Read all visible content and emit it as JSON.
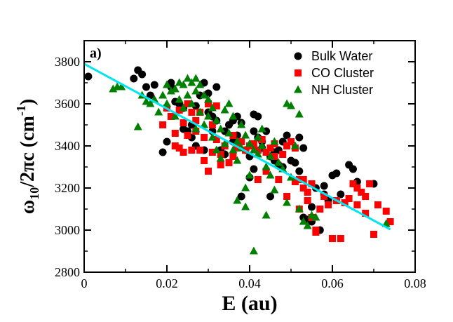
{
  "chart_data": {
    "type": "scatter",
    "panel_label": "a)",
    "xlabel": "E (au)",
    "ylabel_main": "ω",
    "ylabel_sub": "10",
    "ylabel_mid": "/2πc (cm",
    "ylabel_sup": "-1",
    "ylabel_end": ")",
    "xlim": [
      0,
      0.08
    ],
    "ylim": [
      2800,
      3900
    ],
    "xticks": [
      0,
      0.02,
      0.04,
      0.06,
      0.08
    ],
    "xtick_labels": [
      "0",
      "0.02",
      "0.04",
      "0.06",
      "0.08"
    ],
    "yticks": [
      2800,
      3000,
      3200,
      3400,
      3600,
      3800
    ],
    "ytick_labels": [
      "2800",
      "3000",
      "3200",
      "3400",
      "3600",
      "3800"
    ],
    "legend_position": "top-right",
    "fit_line": {
      "x": [
        0.0,
        0.074
      ],
      "y": [
        3790,
        3003
      ],
      "color": "#00e5ee"
    },
    "series": [
      {
        "name": "Bulk Water",
        "marker": "circle",
        "color": "#000000",
        "points": [
          [
            0.001,
            3730
          ],
          [
            0.012,
            3720
          ],
          [
            0.013,
            3760
          ],
          [
            0.014,
            3740
          ],
          [
            0.015,
            3680
          ],
          [
            0.016,
            3640
          ],
          [
            0.017,
            3690
          ],
          [
            0.019,
            3370
          ],
          [
            0.02,
            3420
          ],
          [
            0.021,
            3700
          ],
          [
            0.021,
            3680
          ],
          [
            0.022,
            3610
          ],
          [
            0.023,
            3600
          ],
          [
            0.024,
            3580
          ],
          [
            0.024,
            3480
          ],
          [
            0.025,
            3470
          ],
          [
            0.026,
            3440
          ],
          [
            0.027,
            3400
          ],
          [
            0.027,
            3590
          ],
          [
            0.028,
            3640
          ],
          [
            0.029,
            3700
          ],
          [
            0.03,
            3650
          ],
          [
            0.03,
            3560
          ],
          [
            0.031,
            3540
          ],
          [
            0.032,
            3520
          ],
          [
            0.032,
            3680
          ],
          [
            0.033,
            3380
          ],
          [
            0.034,
            3470
          ],
          [
            0.035,
            3500
          ],
          [
            0.036,
            3520
          ],
          [
            0.037,
            3450
          ],
          [
            0.037,
            3540
          ],
          [
            0.038,
            3510
          ],
          [
            0.038,
            3160
          ],
          [
            0.039,
            3380
          ],
          [
            0.04,
            3350
          ],
          [
            0.04,
            3250
          ],
          [
            0.041,
            3550
          ],
          [
            0.041,
            3470
          ],
          [
            0.042,
            3540
          ],
          [
            0.042,
            3440
          ],
          [
            0.043,
            3420
          ],
          [
            0.043,
            3390
          ],
          [
            0.044,
            3470
          ],
          [
            0.045,
            3350
          ],
          [
            0.045,
            3160
          ],
          [
            0.046,
            3370
          ],
          [
            0.046,
            3330
          ],
          [
            0.047,
            3380
          ],
          [
            0.048,
            3420
          ],
          [
            0.048,
            3300
          ],
          [
            0.049,
            3450
          ],
          [
            0.05,
            3330
          ],
          [
            0.051,
            3320
          ],
          [
            0.052,
            3440
          ],
          [
            0.052,
            3280
          ],
          [
            0.053,
            3390
          ],
          [
            0.053,
            3060
          ],
          [
            0.054,
            3050
          ],
          [
            0.055,
            3110
          ],
          [
            0.055,
            3040
          ],
          [
            0.056,
            3200
          ],
          [
            0.057,
            3000
          ],
          [
            0.058,
            3170
          ],
          [
            0.058,
            3210
          ],
          [
            0.059,
            3140
          ],
          [
            0.06,
            3260
          ],
          [
            0.061,
            3270
          ],
          [
            0.062,
            3170
          ],
          [
            0.064,
            3310
          ],
          [
            0.065,
            3290
          ],
          [
            0.066,
            3230
          ],
          [
            0.07,
            3220
          ],
          [
            0.031,
            3470
          ],
          [
            0.036,
            3420
          ],
          [
            0.034,
            3360
          ],
          [
            0.041,
            3290
          ],
          [
            0.047,
            3310
          ],
          [
            0.029,
            3380
          ],
          [
            0.026,
            3500
          ]
        ]
      },
      {
        "name": "CO Cluster",
        "marker": "square",
        "color": "#ff0000",
        "points": [
          [
            0.019,
            3500
          ],
          [
            0.02,
            3580
          ],
          [
            0.021,
            3540
          ],
          [
            0.022,
            3400
          ],
          [
            0.022,
            3460
          ],
          [
            0.023,
            3390
          ],
          [
            0.023,
            3570
          ],
          [
            0.024,
            3510
          ],
          [
            0.024,
            3370
          ],
          [
            0.025,
            3600
          ],
          [
            0.025,
            3450
          ],
          [
            0.026,
            3560
          ],
          [
            0.026,
            3380
          ],
          [
            0.027,
            3470
          ],
          [
            0.027,
            3520
          ],
          [
            0.028,
            3380
          ],
          [
            0.028,
            3560
          ],
          [
            0.029,
            3440
          ],
          [
            0.029,
            3330
          ],
          [
            0.03,
            3600
          ],
          [
            0.031,
            3500
          ],
          [
            0.031,
            3370
          ],
          [
            0.032,
            3590
          ],
          [
            0.032,
            3430
          ],
          [
            0.033,
            3360
          ],
          [
            0.034,
            3400
          ],
          [
            0.035,
            3320
          ],
          [
            0.036,
            3350
          ],
          [
            0.037,
            3390
          ],
          [
            0.038,
            3420
          ],
          [
            0.039,
            3380
          ],
          [
            0.04,
            3400
          ],
          [
            0.041,
            3410
          ],
          [
            0.042,
            3380
          ],
          [
            0.043,
            3430
          ],
          [
            0.044,
            3370
          ],
          [
            0.045,
            3390
          ],
          [
            0.046,
            3410
          ],
          [
            0.046,
            3350
          ],
          [
            0.047,
            3240
          ],
          [
            0.048,
            3360
          ],
          [
            0.049,
            3400
          ],
          [
            0.05,
            3420
          ],
          [
            0.051,
            3390
          ],
          [
            0.051,
            3230
          ],
          [
            0.052,
            3240
          ],
          [
            0.052,
            3100
          ],
          [
            0.053,
            3200
          ],
          [
            0.053,
            3240
          ],
          [
            0.054,
            3180
          ],
          [
            0.054,
            3140
          ],
          [
            0.055,
            3220
          ],
          [
            0.055,
            3060
          ],
          [
            0.056,
            3000
          ],
          [
            0.056,
            2990
          ],
          [
            0.057,
            3100
          ],
          [
            0.058,
            3160
          ],
          [
            0.059,
            3120
          ],
          [
            0.06,
            2960
          ],
          [
            0.061,
            3140
          ],
          [
            0.062,
            2960
          ],
          [
            0.063,
            3130
          ],
          [
            0.064,
            3150
          ],
          [
            0.065,
            3220
          ],
          [
            0.066,
            3120
          ],
          [
            0.066,
            3200
          ],
          [
            0.067,
            3180
          ],
          [
            0.068,
            3080
          ],
          [
            0.068,
            3160
          ],
          [
            0.069,
            3220
          ],
          [
            0.07,
            2980
          ],
          [
            0.071,
            3120
          ],
          [
            0.073,
            3090
          ],
          [
            0.074,
            3040
          ],
          [
            0.042,
            3240
          ],
          [
            0.049,
            3160
          ],
          [
            0.044,
            3280
          ],
          [
            0.036,
            3450
          ],
          [
            0.033,
            3310
          ],
          [
            0.03,
            3280
          ]
        ]
      },
      {
        "name": "NH Cluster",
        "marker": "triangle",
        "color": "#008000",
        "points": [
          [
            0.007,
            3670
          ],
          [
            0.008,
            3680
          ],
          [
            0.009,
            3680
          ],
          [
            0.013,
            3490
          ],
          [
            0.014,
            3640
          ],
          [
            0.015,
            3610
          ],
          [
            0.016,
            3600
          ],
          [
            0.017,
            3620
          ],
          [
            0.018,
            3560
          ],
          [
            0.019,
            3640
          ],
          [
            0.02,
            3690
          ],
          [
            0.02,
            3600
          ],
          [
            0.021,
            3660
          ],
          [
            0.022,
            3670
          ],
          [
            0.022,
            3540
          ],
          [
            0.023,
            3700
          ],
          [
            0.023,
            3620
          ],
          [
            0.024,
            3690
          ],
          [
            0.024,
            3580
          ],
          [
            0.025,
            3720
          ],
          [
            0.025,
            3640
          ],
          [
            0.026,
            3700
          ],
          [
            0.026,
            3600
          ],
          [
            0.027,
            3720
          ],
          [
            0.027,
            3660
          ],
          [
            0.028,
            3690
          ],
          [
            0.028,
            3560
          ],
          [
            0.029,
            3640
          ],
          [
            0.029,
            3500
          ],
          [
            0.03,
            3620
          ],
          [
            0.03,
            3540
          ],
          [
            0.031,
            3580
          ],
          [
            0.031,
            3440
          ],
          [
            0.032,
            3520
          ],
          [
            0.032,
            3380
          ],
          [
            0.033,
            3480
          ],
          [
            0.033,
            3340
          ],
          [
            0.034,
            3570
          ],
          [
            0.034,
            3410
          ],
          [
            0.035,
            3600
          ],
          [
            0.035,
            3460
          ],
          [
            0.036,
            3540
          ],
          [
            0.036,
            3380
          ],
          [
            0.037,
            3420
          ],
          [
            0.037,
            3330
          ],
          [
            0.038,
            3500
          ],
          [
            0.038,
            3390
          ],
          [
            0.039,
            3450
          ],
          [
            0.039,
            3200
          ],
          [
            0.04,
            3410
          ],
          [
            0.04,
            3260
          ],
          [
            0.041,
            2900
          ],
          [
            0.041,
            3380
          ],
          [
            0.042,
            3440
          ],
          [
            0.042,
            3360
          ],
          [
            0.043,
            3480
          ],
          [
            0.043,
            3400
          ],
          [
            0.044,
            3300
          ],
          [
            0.045,
            3350
          ],
          [
            0.045,
            3260
          ],
          [
            0.046,
            3420
          ],
          [
            0.047,
            3320
          ],
          [
            0.048,
            3290
          ],
          [
            0.049,
            3600
          ],
          [
            0.049,
            3130
          ],
          [
            0.05,
            3250
          ],
          [
            0.05,
            3590
          ],
          [
            0.051,
            3400
          ],
          [
            0.052,
            3100
          ],
          [
            0.052,
            3550
          ],
          [
            0.053,
            3040
          ],
          [
            0.054,
            3020
          ],
          [
            0.055,
            3070
          ],
          [
            0.056,
            3060
          ],
          [
            0.044,
            3070
          ],
          [
            0.046,
            3190
          ],
          [
            0.037,
            3140
          ],
          [
            0.039,
            3110
          ],
          [
            0.073,
            3030
          ],
          [
            0.027,
            3480
          ]
        ]
      }
    ]
  }
}
